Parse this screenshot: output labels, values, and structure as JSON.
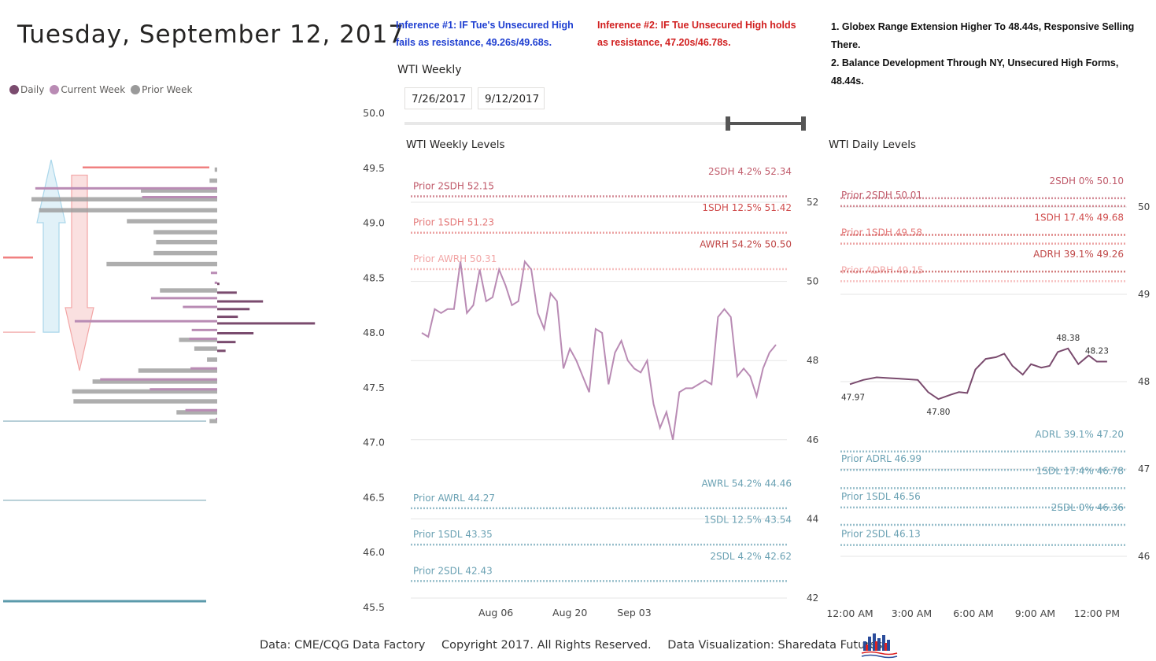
{
  "header": {
    "date_title": "Tuesday, September 12, 2017"
  },
  "legend": {
    "items": [
      {
        "label": "Daily",
        "color": "#7a4b6e"
      },
      {
        "label": "Current Week",
        "color": "#b98bb4"
      },
      {
        "label": "Prior Week",
        "color": "#9a9a9a"
      }
    ]
  },
  "notes": {
    "inference1": "Inference #1: IF Tue's Unsecured High fails as resistance, 49.26s/49.68s.",
    "inference2": "Inference #2: IF Tue Unsecured High holds as resistance, 47.20s/46.78s.",
    "summary": [
      "1. Globex Range Extension Higher To 48.44s, Responsive Selling There.",
      "2. Balance Development Through NY, Unsecured High Forms, 48.44s."
    ]
  },
  "slicer": {
    "title": "WTI Weekly",
    "start": "7/26/2017",
    "end": "9/12/2017"
  },
  "footer": {
    "data": "Data: CME/CQG Data Factory",
    "copyright": "Copyright 2017. All Rights Reserved.",
    "viz": "Data Visualization: Sharedata Futures"
  },
  "chart_data": [
    {
      "type": "bar",
      "name": "profile",
      "ylim": [
        45.5,
        50.0
      ],
      "yticks": [
        45.5,
        46.0,
        46.5,
        47.0,
        47.5,
        48.0,
        48.5,
        49.0,
        49.5,
        50.0
      ],
      "prior_week": [
        [
          49.48,
          0.02
        ],
        [
          49.38,
          0.06
        ],
        [
          49.29,
          0.6
        ],
        [
          49.21,
          1.46
        ],
        [
          49.11,
          1.4
        ],
        [
          49.01,
          0.71
        ],
        [
          48.91,
          0.5
        ],
        [
          48.82,
          0.48
        ],
        [
          48.72,
          0.5
        ],
        [
          48.62,
          0.87
        ],
        [
          48.38,
          0.45
        ],
        [
          47.93,
          0.3
        ],
        [
          47.85,
          0.18
        ],
        [
          47.75,
          0.08
        ],
        [
          47.65,
          0.62
        ],
        [
          47.55,
          0.98
        ],
        [
          47.46,
          1.14
        ],
        [
          47.37,
          1.13
        ],
        [
          47.27,
          0.32
        ],
        [
          47.19,
          0.06
        ]
      ],
      "current_week": [
        [
          49.29,
          1.43
        ],
        [
          49.21,
          0.59
        ],
        [
          48.52,
          0.05
        ],
        [
          48.43,
          0.02
        ],
        [
          48.29,
          0.52
        ],
        [
          48.21,
          0.27
        ],
        [
          48.08,
          1.12
        ],
        [
          48.0,
          0.2
        ],
        [
          47.92,
          0.22
        ],
        [
          47.65,
          0.21
        ],
        [
          47.55,
          0.92
        ],
        [
          47.46,
          0.53
        ],
        [
          47.27,
          0.25
        ],
        [
          47.19,
          0.01
        ]
      ],
      "daily": [
        [
          48.44,
          0.04
        ],
        [
          48.36,
          0.35
        ],
        [
          48.28,
          0.82
        ],
        [
          48.21,
          0.58
        ],
        [
          48.14,
          0.37
        ],
        [
          48.08,
          1.75
        ],
        [
          47.99,
          0.65
        ],
        [
          47.91,
          0.33
        ],
        [
          47.83,
          0.15
        ]
      ],
      "reference_lines": [
        {
          "y": 49.5,
          "color": "#f08080"
        },
        {
          "y": 48.68,
          "color": "#f08080"
        },
        {
          "y": 48.0,
          "color": "#f2a5a5"
        },
        {
          "y": 47.19,
          "color": "#8db3c0"
        },
        {
          "y": 46.47,
          "color": "#8db3c0"
        },
        {
          "y": 45.55,
          "color": "#5b9aab"
        }
      ],
      "arrows": [
        {
          "direction": "up",
          "from": 48.0,
          "to": 49.57,
          "color": "#a9d6ea"
        },
        {
          "direction": "down",
          "from": 49.43,
          "to": 47.65,
          "color": "#f2a5a5"
        }
      ]
    },
    {
      "type": "line",
      "name": "weekly",
      "title": "WTI Weekly Levels",
      "ylim": [
        41.6,
        53.2
      ],
      "yticks": [
        42,
        44,
        46,
        48,
        50,
        52
      ],
      "xticks": [
        "Aug 06",
        "Aug 20",
        "Sep 03"
      ],
      "series_color": "#b98bb4",
      "path": [
        [
          0,
          48.7
        ],
        [
          1,
          48.6
        ],
        [
          2,
          49.3
        ],
        [
          3,
          49.2
        ],
        [
          4,
          49.3
        ],
        [
          5,
          49.3
        ],
        [
          6,
          50.5
        ],
        [
          7,
          49.2
        ],
        [
          8,
          49.4
        ],
        [
          9,
          50.3
        ],
        [
          10,
          49.5
        ],
        [
          11,
          49.6
        ],
        [
          12,
          50.3
        ],
        [
          13,
          49.9
        ],
        [
          14,
          49.4
        ],
        [
          15,
          49.5
        ],
        [
          16,
          50.5
        ],
        [
          17,
          50.3
        ],
        [
          18,
          49.2
        ],
        [
          19,
          48.8
        ],
        [
          20,
          49.7
        ],
        [
          21,
          49.5
        ],
        [
          22,
          47.8
        ],
        [
          23,
          48.3
        ],
        [
          24,
          48.0
        ],
        [
          25,
          47.6
        ],
        [
          26,
          47.2
        ],
        [
          27,
          48.8
        ],
        [
          28,
          48.7
        ],
        [
          29,
          47.4
        ],
        [
          30,
          48.2
        ],
        [
          31,
          48.5
        ],
        [
          32,
          48.0
        ],
        [
          33,
          47.8
        ],
        [
          34,
          47.7
        ],
        [
          35,
          48.0
        ],
        [
          36,
          46.9
        ],
        [
          37,
          46.3
        ],
        [
          38,
          46.7
        ],
        [
          39,
          46.0
        ],
        [
          40,
          47.2
        ],
        [
          41,
          47.3
        ],
        [
          42,
          47.3
        ],
        [
          43,
          47.4
        ],
        [
          44,
          47.5
        ],
        [
          45,
          47.4
        ],
        [
          46,
          49.1
        ],
        [
          47,
          49.3
        ],
        [
          48,
          49.1
        ],
        [
          49,
          47.6
        ],
        [
          50,
          47.8
        ],
        [
          51,
          47.6
        ],
        [
          52,
          47.1
        ],
        [
          53,
          47.8
        ],
        [
          54,
          48.2
        ],
        [
          55,
          48.4
        ]
      ],
      "x_total": 55,
      "xtick_positions": [
        11.5,
        23,
        33
      ],
      "levels": [
        {
          "label": "Prior 2SDH 52.15",
          "side": "left",
          "value": 52.15,
          "color": "#c05a6a"
        },
        {
          "label": "2SDH 4.2% 52.34",
          "side": "right",
          "value": 52.34,
          "color": "#c05a6a"
        },
        {
          "label": "Prior 1SDH 51.23",
          "side": "left",
          "value": 51.23,
          "color": "#e47a7a"
        },
        {
          "label": "1SDH 12.5% 51.42",
          "side": "right",
          "value": 51.42,
          "color": "#d04e4e"
        },
        {
          "label": "Prior AWRH 50.31",
          "side": "left",
          "value": 50.31,
          "color": "#f2a5a5"
        },
        {
          "label": "AWRH 54.2% 50.50",
          "side": "right",
          "value": 50.5,
          "color": "#c04848"
        },
        {
          "label": "Prior AWRL 44.27",
          "side": "left",
          "value": 44.27,
          "color": "#6aa1b3"
        },
        {
          "label": "AWRL 54.2% 44.46",
          "side": "right",
          "value": 44.46,
          "color": "#6aa1b3"
        },
        {
          "label": "Prior 1SDL 43.35",
          "side": "left",
          "value": 43.35,
          "color": "#6aa1b3"
        },
        {
          "label": "1SDL 12.5% 43.54",
          "side": "right",
          "value": 43.54,
          "color": "#6aa1b3"
        },
        {
          "label": "Prior 2SDL 42.43",
          "side": "left",
          "value": 42.43,
          "color": "#6aa1b3"
        },
        {
          "label": "2SDL 4.2% 42.62",
          "side": "right",
          "value": 42.62,
          "color": "#6aa1b3"
        }
      ]
    },
    {
      "type": "line",
      "name": "daily",
      "title": "WTI Daily Levels",
      "ylim": [
        45.7,
        50.3
      ],
      "yticks": [
        46,
        47,
        48,
        49,
        50
      ],
      "xticks": [
        "12:00 AM",
        "3:00 AM",
        "6:00 AM",
        "9:00 AM",
        "12:00 PM"
      ],
      "xlim": [
        0,
        13
      ],
      "x": [
        0,
        0.65,
        1.3,
        2.0,
        2.7,
        3.3,
        3.8,
        4.3,
        4.9,
        5.3,
        5.7,
        6.1,
        6.6,
        7.1,
        7.5,
        7.9,
        8.4,
        8.8,
        9.3,
        9.7,
        10.1,
        10.6,
        11.1,
        11.6,
        12.0,
        12.5
      ],
      "y": [
        47.97,
        48.02,
        48.05,
        48.04,
        48.03,
        48.02,
        47.88,
        47.8,
        47.85,
        47.88,
        47.87,
        48.14,
        48.26,
        48.28,
        48.32,
        48.18,
        48.08,
        48.2,
        48.16,
        48.18,
        48.34,
        48.38,
        48.2,
        48.3,
        48.23,
        48.23
      ],
      "point_labels": [
        {
          "i": 0,
          "text": "47.97",
          "pos": "below"
        },
        {
          "i": 7,
          "text": "47.80",
          "pos": "below"
        },
        {
          "i": 21,
          "text": "48.38",
          "pos": "above"
        },
        {
          "i": 24,
          "text": "48.23",
          "pos": "above"
        }
      ],
      "series_color": "#7a4b6e",
      "levels": [
        {
          "label": "Prior 2SDH 50.01",
          "side": "left",
          "value": 50.01,
          "color": "#c05a6a"
        },
        {
          "label": "2SDH 0% 50.10",
          "side": "right",
          "value": 50.1,
          "color": "#c05a6a"
        },
        {
          "label": "Prior 1SDH 49.58",
          "side": "left",
          "value": 49.58,
          "color": "#e47a7a"
        },
        {
          "label": "1SDH 17.4% 49.68",
          "side": "right",
          "value": 49.68,
          "color": "#d04e4e"
        },
        {
          "label": "Prior ADRH 49.15",
          "side": "left",
          "value": 49.15,
          "color": "#f2a5a5"
        },
        {
          "label": "ADRH 39.1% 49.26",
          "side": "right",
          "value": 49.26,
          "color": "#c04848"
        },
        {
          "label": "ADRL 39.1% 47.20",
          "side": "right",
          "value": 47.2,
          "color": "#6aa1b3"
        },
        {
          "label": "Prior ADRL 46.99",
          "side": "left",
          "value": 46.99,
          "color": "#6aa1b3"
        },
        {
          "label": "1SDL 17.4% 46.78",
          "side": "right",
          "value": 46.78,
          "color": "#6aa1b3"
        },
        {
          "label": "Prior 1SDL 46.56",
          "side": "left",
          "value": 46.56,
          "color": "#6aa1b3"
        },
        {
          "label": "2SDL 0% 46.36",
          "side": "right",
          "value": 46.36,
          "color": "#6aa1b3"
        },
        {
          "label": "Prior 2SDL 46.13",
          "side": "left",
          "value": 46.13,
          "color": "#6aa1b3"
        }
      ]
    }
  ]
}
